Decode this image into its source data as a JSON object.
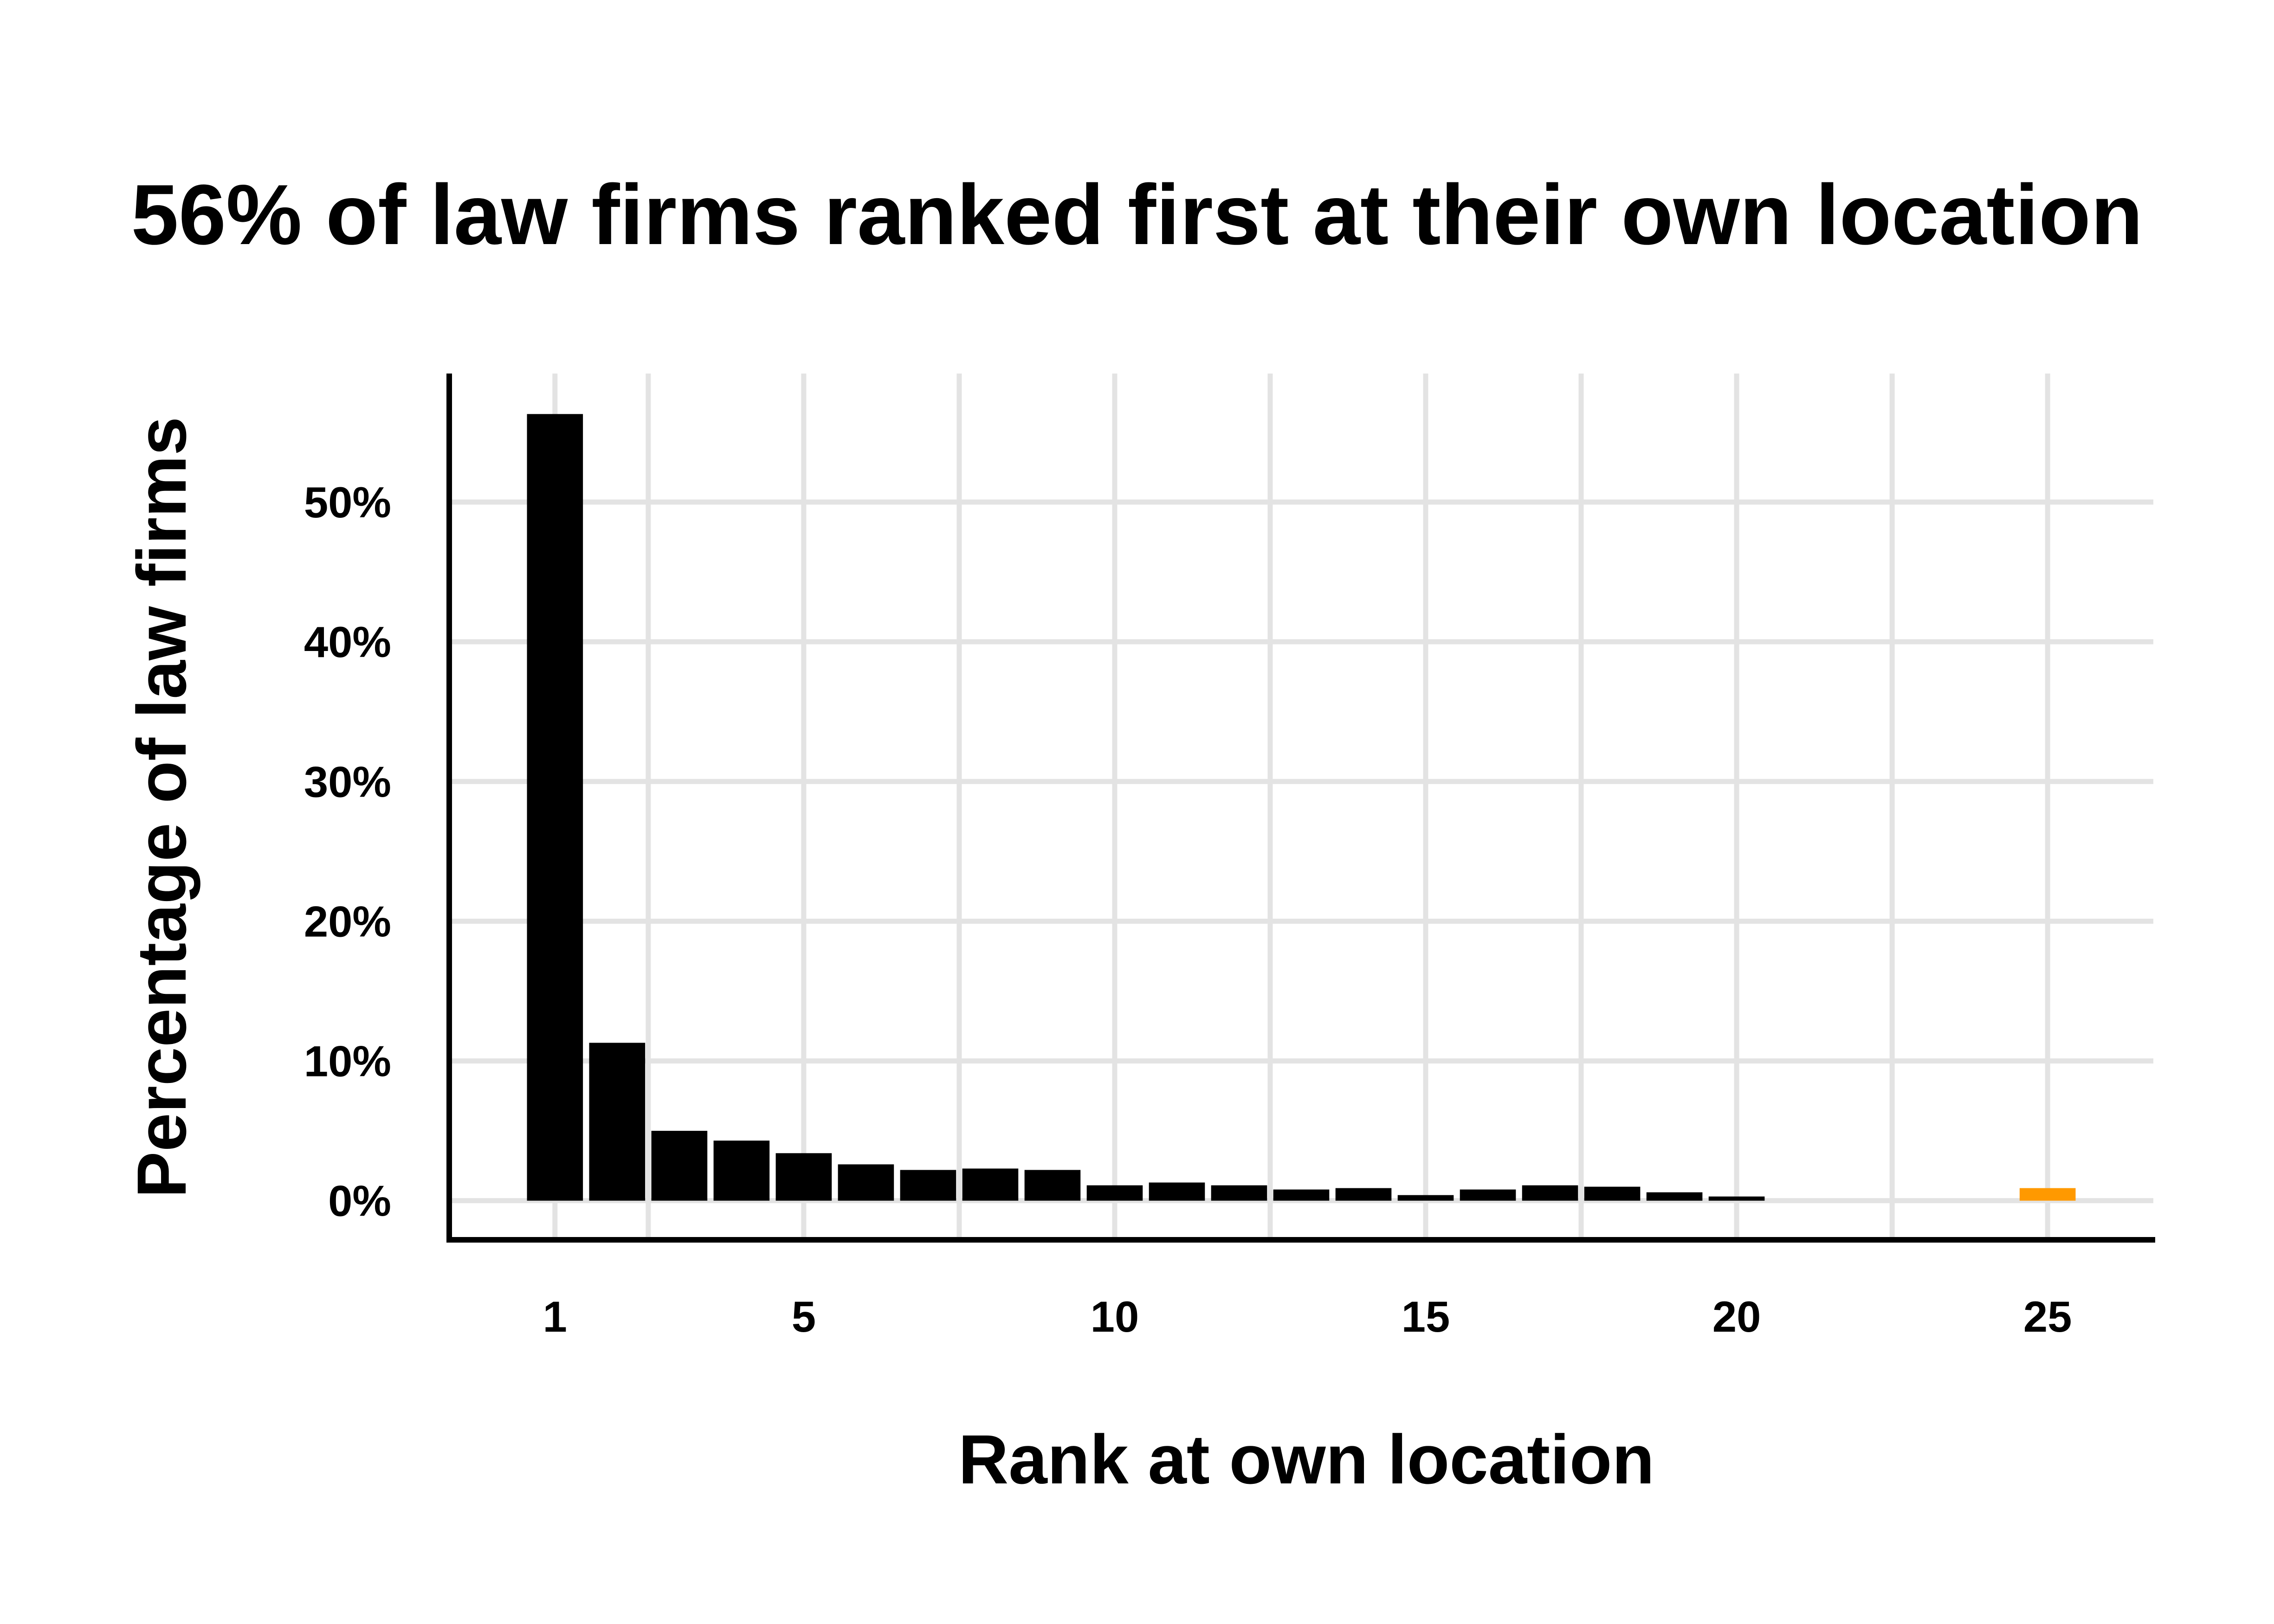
{
  "chart_data": {
    "type": "bar",
    "title": "56% of law firms ranked first at their own location",
    "xlabel": "Rank at own location",
    "ylabel": "Percentage of law firms",
    "x": [
      1,
      2,
      3,
      4,
      5,
      6,
      7,
      8,
      9,
      10,
      11,
      12,
      13,
      14,
      15,
      16,
      17,
      18,
      19,
      20,
      21,
      22,
      23,
      24,
      25
    ],
    "values": [
      56.3,
      11.3,
      5.0,
      4.3,
      3.4,
      2.6,
      2.2,
      2.3,
      2.2,
      1.1,
      1.3,
      1.1,
      0.8,
      0.9,
      0.4,
      0.8,
      1.1,
      1.0,
      0.6,
      0.3,
      0,
      0,
      0,
      0,
      0.9
    ],
    "highlight_index": 24,
    "bar_color": "#000000",
    "highlight_color": "#ff9900",
    "grid_color": "#e3e3e3",
    "xticks": [
      1,
      5,
      10,
      15,
      20,
      25
    ],
    "xtick_labels": [
      "1",
      "5",
      "10",
      "15",
      "20",
      "25"
    ],
    "yticks": [
      0,
      10,
      20,
      30,
      40,
      50
    ],
    "ytick_labels": [
      "0%",
      "10%",
      "20%",
      "30%",
      "40%",
      "50%"
    ],
    "xlim": [
      -0.7,
      26.7
    ],
    "ylim": [
      -2.8,
      59.2
    ],
    "grid": true,
    "legend": "none"
  }
}
